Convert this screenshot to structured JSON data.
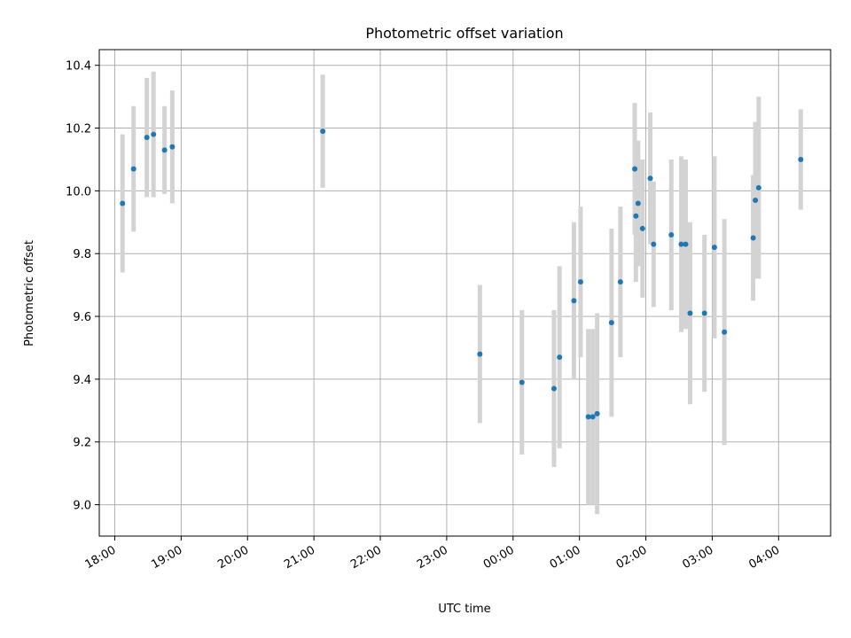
{
  "chart_data": {
    "type": "scatter",
    "title": "Photometric offset variation",
    "xlabel": "UTC time",
    "ylabel": "Photometric offset",
    "x_unit": "UTC time (HH:MM)",
    "xlim": [
      "17:46",
      "04:47"
    ],
    "ylim": [
      8.9,
      10.45
    ],
    "grid": true,
    "xticks": [
      "18:00",
      "19:00",
      "20:00",
      "21:00",
      "22:00",
      "23:00",
      "00:00",
      "01:00",
      "02:00",
      "03:00",
      "04:00"
    ],
    "yticks": [
      "9.0",
      "9.2",
      "9.4",
      "9.6",
      "9.8",
      "10.0",
      "10.2",
      "10.4"
    ],
    "point_color": "#1f77b4",
    "errorbar_color": "#d3d3d3",
    "points": [
      {
        "x": "18:07",
        "y": 9.96,
        "err": 0.22
      },
      {
        "x": "18:17",
        "y": 10.07,
        "err": 0.2
      },
      {
        "x": "18:29",
        "y": 10.17,
        "err": 0.19
      },
      {
        "x": "18:35",
        "y": 10.18,
        "err": 0.2
      },
      {
        "x": "18:45",
        "y": 10.13,
        "err": 0.14
      },
      {
        "x": "18:52",
        "y": 10.14,
        "err": 0.18
      },
      {
        "x": "21:08",
        "y": 10.19,
        "err": 0.18
      },
      {
        "x": "23:30",
        "y": 9.48,
        "err": 0.22
      },
      {
        "x": "00:08",
        "y": 9.39,
        "err": 0.23
      },
      {
        "x": "00:37",
        "y": 9.37,
        "err": 0.25
      },
      {
        "x": "00:42",
        "y": 9.47,
        "err": 0.29
      },
      {
        "x": "00:55",
        "y": 9.65,
        "err": 0.25
      },
      {
        "x": "01:01",
        "y": 9.71,
        "err": 0.24
      },
      {
        "x": "01:08",
        "y": 9.28,
        "err": 0.28
      },
      {
        "x": "01:12",
        "y": 9.28,
        "err": 0.28
      },
      {
        "x": "01:16",
        "y": 9.29,
        "err": 0.32
      },
      {
        "x": "01:29",
        "y": 9.58,
        "err": 0.3
      },
      {
        "x": "01:37",
        "y": 9.71,
        "err": 0.24
      },
      {
        "x": "01:50",
        "y": 10.07,
        "err": 0.21
      },
      {
        "x": "01:51",
        "y": 9.92,
        "err": 0.21
      },
      {
        "x": "01:53",
        "y": 9.96,
        "err": 0.2
      },
      {
        "x": "01:57",
        "y": 9.88,
        "err": 0.22
      },
      {
        "x": "02:04",
        "y": 10.04,
        "err": 0.21
      },
      {
        "x": "02:07",
        "y": 9.83,
        "err": 0.2
      },
      {
        "x": "02:23",
        "y": 9.86,
        "err": 0.24
      },
      {
        "x": "02:32",
        "y": 9.83,
        "err": 0.28
      },
      {
        "x": "02:36",
        "y": 9.83,
        "err": 0.27
      },
      {
        "x": "02:40",
        "y": 9.61,
        "err": 0.29
      },
      {
        "x": "02:53",
        "y": 9.61,
        "err": 0.25
      },
      {
        "x": "03:02",
        "y": 9.82,
        "err": 0.29
      },
      {
        "x": "03:11",
        "y": 9.55,
        "err": 0.36
      },
      {
        "x": "03:37",
        "y": 9.85,
        "err": 0.2
      },
      {
        "x": "03:39",
        "y": 9.97,
        "err": 0.25
      },
      {
        "x": "03:42",
        "y": 10.01,
        "err": 0.29
      },
      {
        "x": "04:20",
        "y": 10.1,
        "err": 0.16
      }
    ]
  }
}
